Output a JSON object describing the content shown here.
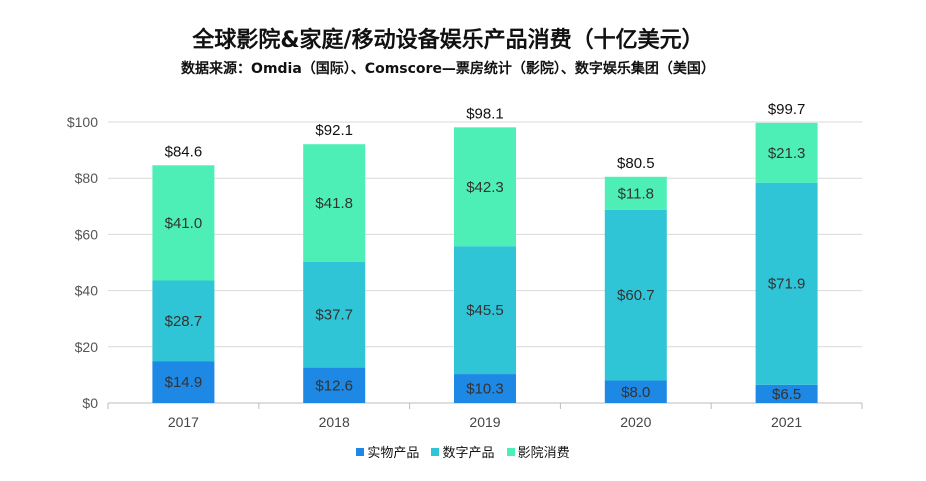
{
  "chart_data": {
    "type": "bar",
    "stacked": true,
    "title": "全球影院&家庭/移动设备娱乐产品消费（十亿美元）",
    "subtitle": "数据来源：Omdia（国际）、Comscore—票房统计（影院）、数字娱乐集团（美国）",
    "categories": [
      "2017",
      "2018",
      "2019",
      "2020",
      "2021"
    ],
    "series": [
      {
        "name": "实物产品",
        "color": "#1e88e5",
        "values": [
          14.9,
          12.6,
          10.3,
          8.0,
          6.5
        ],
        "labels": [
          "$14.9",
          "$12.6",
          "$10.3",
          "$8.0",
          "$6.5"
        ]
      },
      {
        "name": "数字产品",
        "color": "#2fc5d6",
        "values": [
          28.7,
          37.7,
          45.5,
          60.7,
          71.9
        ],
        "labels": [
          "$28.7",
          "$37.7",
          "$45.5",
          "$60.7",
          "$71.9"
        ]
      },
      {
        "name": "影院消费",
        "color": "#4eefb6",
        "values": [
          41.0,
          41.8,
          42.3,
          11.8,
          21.3
        ],
        "labels": [
          "$41.0",
          "$41.8",
          "$42.3",
          "$11.8",
          "$21.3"
        ]
      }
    ],
    "totals": [
      84.6,
      92.1,
      98.1,
      80.5,
      99.7
    ],
    "total_labels": [
      "$84.6",
      "$92.1",
      "$98.1",
      "$80.5",
      "$99.7"
    ],
    "ylim": [
      0,
      100
    ],
    "yticks": [
      0,
      20,
      40,
      60,
      80,
      100
    ],
    "ytick_labels": [
      "$0",
      "$20",
      "$40",
      "$60",
      "$80",
      "$100"
    ],
    "grid": true,
    "legend_position": "bottom"
  }
}
